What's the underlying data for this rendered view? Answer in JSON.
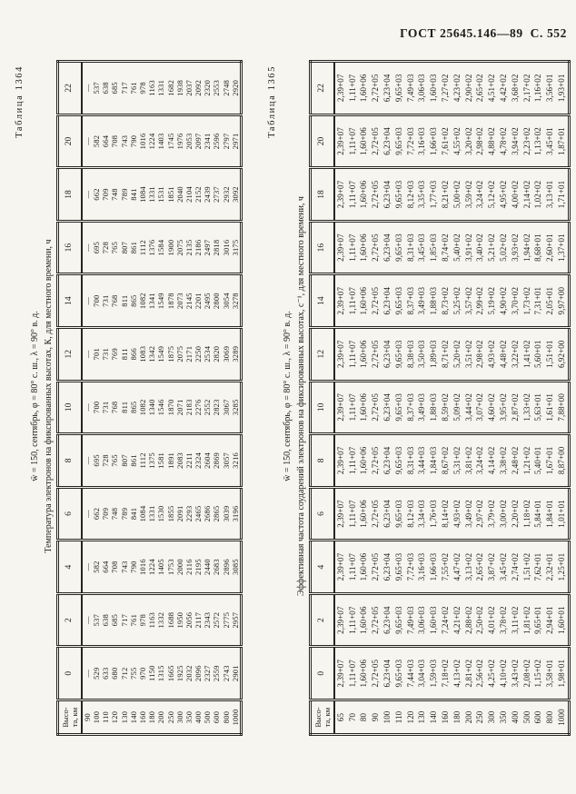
{
  "page": {
    "header_right": "ГОСТ 25645.146—89  С. 552"
  },
  "tables": [
    {
      "id": "1364",
      "label": "Таблица 1364",
      "condition_line": "w̄ = 150, сентябрь, φ = 80° с. ш., λ = 90° в. д.",
      "title_line": "Температура электронов на фиксированных высотах, К, для местного времени, ч",
      "stub_lines": [
        "Высо-",
        "та, км"
      ],
      "hours": [
        "0",
        "2",
        "4",
        "6",
        "8",
        "10",
        "12",
        "14",
        "16",
        "18",
        "20",
        "22"
      ],
      "heights": [
        "90",
        "100",
        "110",
        "120",
        "130",
        "140",
        "160",
        "180",
        "200",
        "250",
        "300",
        "350",
        "400",
        "500",
        "600",
        "800",
        "1000"
      ],
      "series": [
        {
          "hour": "0",
          "values": [
            "—",
            "529",
            "633",
            "680",
            "712",
            "755",
            "970",
            "1150",
            "1315",
            "1665",
            "1925",
            "2032",
            "2096",
            "2327",
            "2559",
            "2743",
            "2901"
          ]
        },
        {
          "hour": "2",
          "values": [
            "—",
            "537",
            "638",
            "685",
            "717",
            "761",
            "978",
            "1163",
            "1332",
            "1688",
            "1950",
            "2056",
            "2117",
            "2343",
            "2572",
            "2775",
            "2957"
          ]
        },
        {
          "hour": "4",
          "values": [
            "—",
            "582",
            "664",
            "708",
            "743",
            "790",
            "1016",
            "1224",
            "1405",
            "1753",
            "2000",
            "2116",
            "2195",
            "2440",
            "2683",
            "2896",
            "3085"
          ]
        },
        {
          "hour": "6",
          "values": [
            "—",
            "662",
            "709",
            "748",
            "789",
            "841",
            "1084",
            "1331",
            "1530",
            "1855",
            "2091",
            "2293",
            "2465",
            "2686",
            "2865",
            "3039",
            "3196"
          ]
        },
        {
          "hour": "8",
          "values": [
            "—",
            "695",
            "728",
            "765",
            "807",
            "861",
            "1112",
            "1375",
            "1581",
            "1891",
            "2083",
            "2211",
            "2324",
            "2604",
            "2869",
            "3057",
            "3216"
          ]
        },
        {
          "hour": "10",
          "values": [
            "—",
            "700",
            "731",
            "768",
            "811",
            "865",
            "1082",
            "1340",
            "1546",
            "1870",
            "2071",
            "2183",
            "2276",
            "2552",
            "2823",
            "3067",
            "3285"
          ]
        },
        {
          "hour": "12",
          "values": [
            "—",
            "701",
            "731",
            "769",
            "811",
            "866",
            "1083",
            "1342",
            "1549",
            "1875",
            "2075",
            "2171",
            "2250",
            "2534",
            "2820",
            "3069",
            "3289"
          ]
        },
        {
          "hour": "14",
          "values": [
            "—",
            "700",
            "731",
            "768",
            "811",
            "865",
            "1082",
            "1341",
            "1549",
            "1878",
            "2073",
            "2145",
            "2201",
            "2495",
            "2800",
            "3054",
            "3278"
          ]
        },
        {
          "hour": "16",
          "values": [
            "—",
            "695",
            "728",
            "765",
            "807",
            "861",
            "1112",
            "1376",
            "1584",
            "1900",
            "2075",
            "2135",
            "2186",
            "2497",
            "2818",
            "3016",
            "3175"
          ]
        },
        {
          "hour": "18",
          "values": [
            "—",
            "662",
            "709",
            "748",
            "789",
            "841",
            "1084",
            "1331",
            "1531",
            "1851",
            "2040",
            "2104",
            "2152",
            "2439",
            "2737",
            "2932",
            "3092"
          ]
        },
        {
          "hour": "20",
          "values": [
            "—",
            "582",
            "664",
            "708",
            "743",
            "790",
            "1016",
            "1224",
            "1403",
            "1745",
            "1976",
            "2053",
            "2097",
            "2341",
            "2596",
            "2797",
            "2971"
          ]
        },
        {
          "hour": "22",
          "values": [
            "—",
            "537",
            "638",
            "685",
            "717",
            "761",
            "978",
            "1163",
            "1331",
            "1682",
            "1938",
            "2037",
            "2092",
            "2320",
            "2553",
            "2748",
            "2920"
          ]
        }
      ]
    },
    {
      "id": "1365",
      "label": "Таблица 1365",
      "condition_line": "w̄ = 150, сентябрь, φ = 80° с. ш., λ = 90° в. д.",
      "title_line": "Эффективная частота соударений электронов на фиксированных высотах, с⁻¹, для местного времени, ч",
      "stub_lines": [
        "Высо-",
        "та, км"
      ],
      "hours": [
        "0",
        "2",
        "4",
        "6",
        "8",
        "10",
        "12",
        "14",
        "16",
        "18",
        "20",
        "22"
      ],
      "heights": [
        "65",
        "70",
        "80",
        "90",
        "100",
        "110",
        "120",
        "130",
        "140",
        "160",
        "180",
        "200",
        "250",
        "300",
        "350",
        "400",
        "500",
        "600",
        "800",
        "1000"
      ],
      "series": [
        {
          "hour": "0",
          "values": [
            "2,39+07",
            "1,11+07",
            "1,60+06",
            "2,72+05",
            "6,23+04",
            "9,65+03",
            "7,44+03",
            "3,04+03",
            "1,59+03",
            "7,18+02",
            "4,13+02",
            "2,81+02",
            "2,56+02",
            "4,25+02",
            "4,10+02",
            "3,43+02",
            "2,08+02",
            "1,15+02",
            "3,58+01",
            "1,98+01"
          ]
        },
        {
          "hour": "2",
          "values": [
            "2,39+07",
            "1,11+07",
            "1,60+06",
            "2,72+05",
            "6,23+04",
            "9,65+03",
            "7,49+03",
            "3,06+03",
            "1,60+03",
            "7,24+02",
            "4,21+02",
            "2,88+02",
            "2,50+02",
            "4,01+02",
            "3,78+02",
            "3,11+02",
            "1,81+02",
            "9,65+01",
            "2,94+01",
            "1,60+01"
          ]
        },
        {
          "hour": "4",
          "values": [
            "2,39+07",
            "1,11+07",
            "1,60+06",
            "2,72+05",
            "6,23+04",
            "9,65+03",
            "7,72+03",
            "3,16+03",
            "1,66+03",
            "7,55+02",
            "4,47+02",
            "3,13+02",
            "2,65+02",
            "3,87+02",
            "3,45+02",
            "2,74+02",
            "1,51+02",
            "7,62+01",
            "2,32+01",
            "1,25+01"
          ]
        },
        {
          "hour": "6",
          "values": [
            "2,39+07",
            "1,11+07",
            "1,60+06",
            "2,72+05",
            "6,23+04",
            "9,65+03",
            "8,12+03",
            "3,34+03",
            "1,76+03",
            "8,14+02",
            "4,93+02",
            "3,49+02",
            "2,97+02",
            "3,79+02",
            "3,00+02",
            "2,20+02",
            "1,18+02",
            "5,84+01",
            "1,84+01",
            "1,01+01"
          ]
        },
        {
          "hour": "8",
          "values": [
            "2,39+07",
            "1,11+07",
            "1,60+06",
            "2,72+05",
            "6,23+04",
            "9,65+03",
            "8,31+03",
            "3,44+03",
            "1,84+03",
            "8,67+02",
            "5,31+02",
            "3,81+02",
            "3,24+02",
            "4,14+02",
            "3,38+02",
            "2,48+02",
            "1,21+02",
            "5,40+01",
            "1,67+01",
            "8,87+00"
          ]
        },
        {
          "hour": "10",
          "values": [
            "2,39+07",
            "1,11+07",
            "1,60+06",
            "2,72+05",
            "6,23+04",
            "9,65+03",
            "8,37+03",
            "3,49+03",
            "1,88+03",
            "8,59+02",
            "5,09+02",
            "3,44+02",
            "3,07+02",
            "4,60+02",
            "3,95+02",
            "2,87+02",
            "1,33+02",
            "5,63+01",
            "1,61+01",
            "7,88+00"
          ]
        },
        {
          "hour": "12",
          "values": [
            "2,39+07",
            "1,11+07",
            "1,60+06",
            "2,72+05",
            "6,23+04",
            "9,65+03",
            "8,38+03",
            "3,50+03",
            "1,89+03",
            "8,71+02",
            "5,20+02",
            "3,51+02",
            "2,98+02",
            "4,93+02",
            "4,48+02",
            "3,22+02",
            "1,41+02",
            "5,60+01",
            "1,51+01",
            "6,92+00"
          ]
        },
        {
          "hour": "14",
          "values": [
            "2,39+07",
            "1,11+07",
            "1,60+06",
            "2,72+05",
            "6,23+04",
            "9,65+03",
            "8,37+03",
            "3,49+03",
            "1,88+03",
            "8,73+02",
            "5,25+02",
            "3,57+02",
            "2,99+02",
            "5,19+02",
            "4,90+02",
            "3,70+02",
            "1,73+02",
            "7,31+01",
            "2,05+01",
            "9,97+00"
          ]
        },
        {
          "hour": "16",
          "values": [
            "2,39+07",
            "1,11+07",
            "1,60+06",
            "2,72+05",
            "6,23+04",
            "9,65+03",
            "8,31+03",
            "3,45+03",
            "1,85+03",
            "8,74+02",
            "5,40+02",
            "3,91+02",
            "3,40+02",
            "5,21+02",
            "5,02+02",
            "3,93+02",
            "1,94+02",
            "8,68+01",
            "2,60+01",
            "1,37+01"
          ]
        },
        {
          "hour": "18",
          "values": [
            "2,39+07",
            "1,11+07",
            "1,60+06",
            "2,72+05",
            "6,23+04",
            "9,65+03",
            "8,12+03",
            "3,35+03",
            "1,77+03",
            "8,21+02",
            "5,00+02",
            "3,59+02",
            "3,24+02",
            "5,12+02",
            "4,95+02",
            "4,00+02",
            "2,14+02",
            "1,02+02",
            "3,13+01",
            "1,71+01"
          ]
        },
        {
          "hour": "20",
          "values": [
            "2,39+07",
            "1,11+07",
            "1,60+06",
            "2,72+05",
            "6,23+04",
            "9,65+03",
            "7,72+03",
            "3,16+03",
            "1,66+03",
            "7,61+02",
            "4,55+02",
            "3,20+02",
            "2,98+02",
            "4,88+02",
            "4,78+02",
            "3,94+02",
            "2,23+02",
            "1,13+02",
            "3,45+01",
            "1,87+01"
          ]
        },
        {
          "hour": "22",
          "values": [
            "2,39+07",
            "1,11+07",
            "1,60+06",
            "2,72+05",
            "6,23+04",
            "9,65+03",
            "7,49+03",
            "3,06+03",
            "1,60+03",
            "7,27+02",
            "4,23+02",
            "2,90+02",
            "2,65+02",
            "4,51+02",
            "4,42+02",
            "3,68+02",
            "2,17+02",
            "1,16+02",
            "3,56+01",
            "1,93+01"
          ]
        }
      ]
    }
  ]
}
